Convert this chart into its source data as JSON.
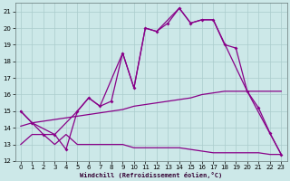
{
  "background_color": "#cce8e8",
  "grid_color": "#aacccc",
  "line_color": "#880088",
  "xlabel": "Windchill (Refroidissement éolien,°C)",
  "xlim": [
    -0.5,
    23.5
  ],
  "ylim": [
    12,
    21.5
  ],
  "yticks": [
    12,
    13,
    14,
    15,
    16,
    17,
    18,
    19,
    20,
    21
  ],
  "xticks": [
    0,
    1,
    2,
    3,
    4,
    5,
    6,
    7,
    8,
    9,
    10,
    11,
    12,
    13,
    14,
    15,
    16,
    17,
    18,
    19,
    20,
    21,
    22,
    23
  ],
  "line1_x": [
    0,
    1,
    2,
    3,
    4,
    5,
    6,
    7,
    8,
    9,
    10,
    11,
    12,
    13,
    14,
    15,
    16,
    17,
    18,
    19,
    20,
    21,
    22,
    23
  ],
  "line1_y": [
    15.0,
    14.3,
    13.6,
    13.6,
    12.7,
    15.0,
    15.8,
    15.3,
    15.6,
    18.5,
    16.4,
    20.0,
    19.8,
    20.3,
    21.2,
    20.3,
    20.5,
    20.5,
    19.0,
    18.8,
    16.2,
    15.2,
    13.7,
    12.4
  ],
  "line2_x": [
    0,
    1,
    3,
    5,
    6,
    7,
    9,
    10,
    11,
    12,
    14,
    15,
    16,
    17,
    20,
    23
  ],
  "line2_y": [
    15.0,
    14.3,
    13.6,
    15.0,
    15.8,
    15.3,
    18.5,
    16.4,
    20.0,
    19.8,
    21.2,
    20.3,
    20.5,
    20.5,
    16.2,
    12.4
  ],
  "line3_x": [
    0,
    1,
    2,
    3,
    4,
    5,
    6,
    7,
    8,
    9,
    10,
    11,
    12,
    13,
    14,
    15,
    16,
    17,
    18,
    19,
    20,
    21,
    22,
    23
  ],
  "line3_y": [
    14.1,
    14.3,
    14.4,
    14.5,
    14.6,
    14.7,
    14.8,
    14.9,
    15.0,
    15.1,
    15.3,
    15.4,
    15.5,
    15.6,
    15.7,
    15.8,
    16.0,
    16.1,
    16.2,
    16.2,
    16.2,
    16.2,
    16.2,
    16.2
  ],
  "line4_x": [
    0,
    1,
    2,
    3,
    4,
    5,
    6,
    7,
    8,
    9,
    10,
    11,
    12,
    13,
    14,
    15,
    16,
    17,
    18,
    19,
    20,
    21,
    22,
    23
  ],
  "line4_y": [
    13.0,
    13.6,
    13.6,
    13.0,
    13.6,
    13.0,
    13.0,
    13.0,
    13.0,
    13.0,
    12.8,
    12.8,
    12.8,
    12.8,
    12.8,
    12.7,
    12.6,
    12.5,
    12.5,
    12.5,
    12.5,
    12.5,
    12.4,
    12.4
  ],
  "marker_x": [
    0,
    1,
    3,
    5,
    6,
    7,
    9,
    10,
    11,
    12,
    14,
    15,
    16,
    17,
    20,
    23
  ],
  "marker_y": [
    15.0,
    14.3,
    13.6,
    15.0,
    15.8,
    15.3,
    18.5,
    16.4,
    20.0,
    19.8,
    21.2,
    20.3,
    20.5,
    20.5,
    16.2,
    12.4
  ]
}
